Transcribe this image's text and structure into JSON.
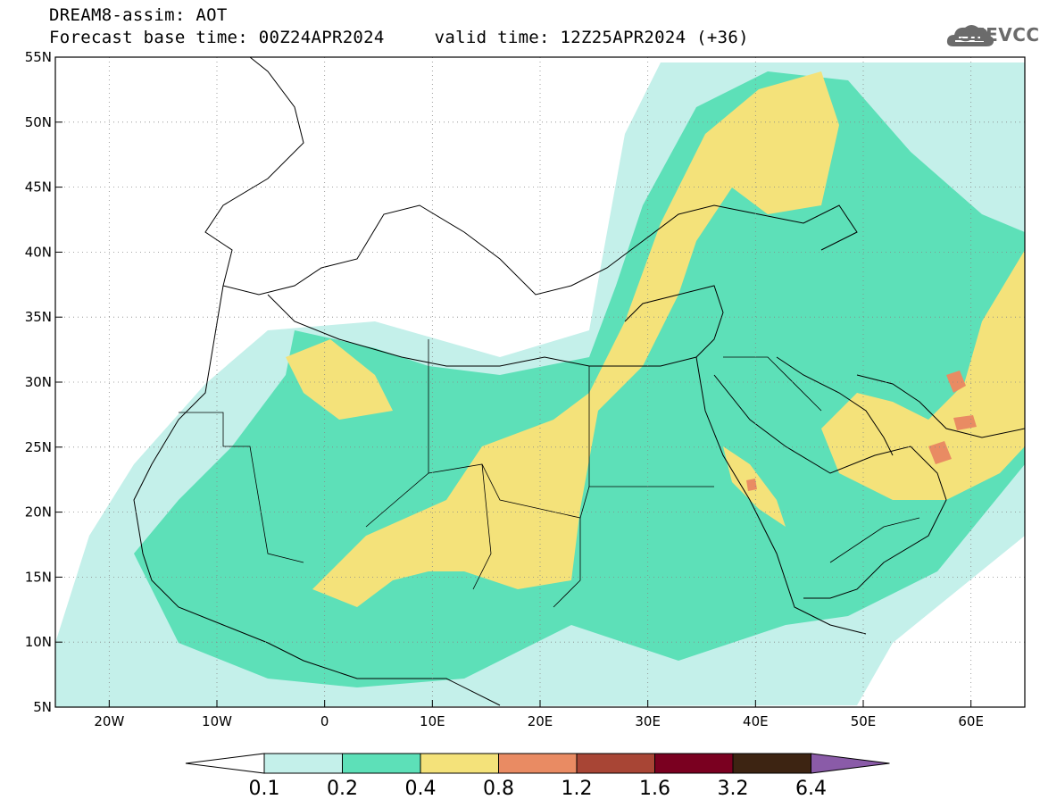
{
  "header": {
    "line1": "DREAM8-assim: AOT",
    "base_time": "Forecast base time: 00Z24APR2024",
    "valid_time": "valid time: 12Z25APR2024 (+36)"
  },
  "logo": {
    "text": "SEEVCCC",
    "icon": "cloud-icon"
  },
  "map": {
    "lat_ticks": [
      "5N",
      "10N",
      "15N",
      "20N",
      "25N",
      "30N",
      "35N",
      "40N",
      "45N",
      "50N",
      "55N"
    ],
    "lon_ticks": [
      "20W",
      "10W",
      "0",
      "10E",
      "20E",
      "30E",
      "40E",
      "50E",
      "60E"
    ],
    "lon_range": [
      -25,
      65
    ],
    "lat_range": [
      5,
      55
    ],
    "grid": "dotted"
  },
  "colorbar": {
    "levels": [
      "0.1",
      "0.2",
      "0.4",
      "0.8",
      "1.2",
      "1.6",
      "3.2",
      "6.4"
    ],
    "colors": [
      "#ffffff",
      "#c4f0ea",
      "#5de0b8",
      "#f4e27a",
      "#e98b63",
      "#a84535",
      "#7a0020",
      "#3d2412",
      "#8a5ba8"
    ]
  }
}
